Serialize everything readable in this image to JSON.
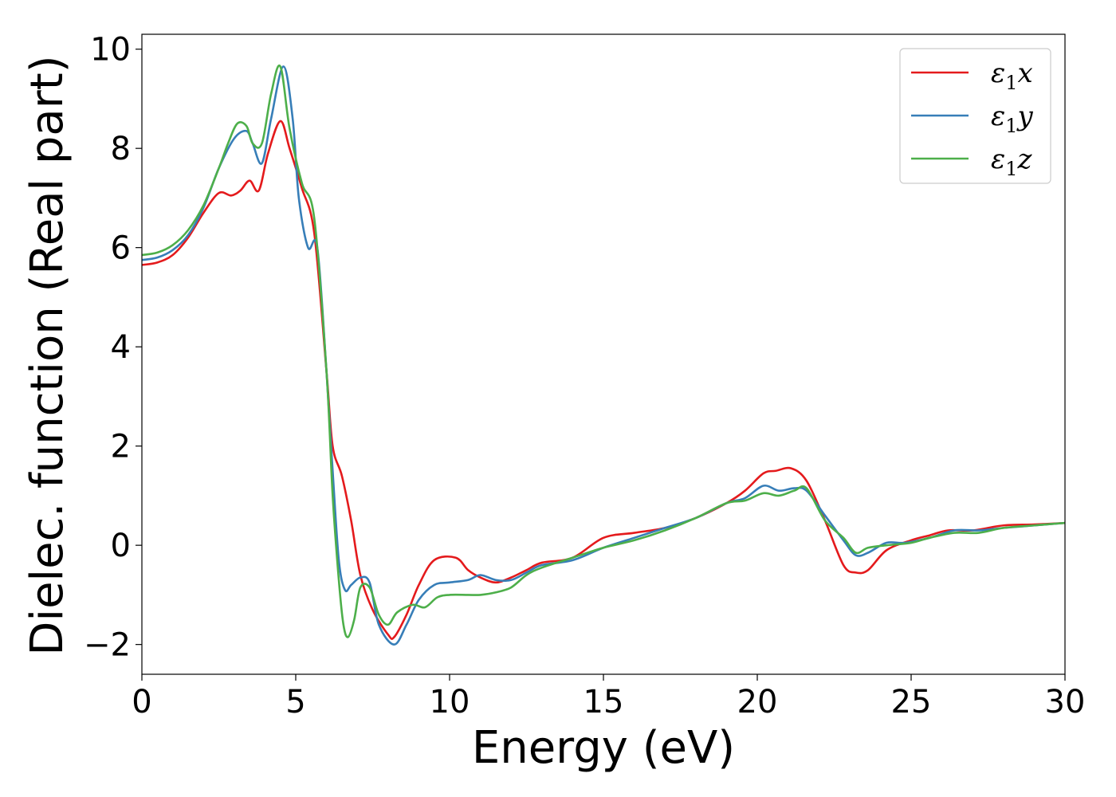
{
  "chart_data": {
    "type": "line",
    "title": "",
    "xlabel": "Energy (eV)",
    "ylabel": "Dielec. function (Real part)",
    "xlim": [
      0,
      30
    ],
    "ylim": [
      -2.6,
      10.3
    ],
    "xticks": [
      0,
      5,
      10,
      15,
      20,
      25,
      30
    ],
    "xtick_labels": [
      "0",
      "5",
      "10",
      "15",
      "20",
      "25",
      "30"
    ],
    "yticks": [
      -2,
      0,
      2,
      4,
      6,
      8,
      10
    ],
    "ytick_labels": [
      "−2",
      "0",
      "2",
      "4",
      "6",
      "8",
      "10"
    ],
    "grid": false,
    "legend_position": "top-right",
    "series": [
      {
        "name": "ε1x",
        "legend_symbol": "ε",
        "legend_sub": "1",
        "legend_var": "x",
        "color": "#e41a1c",
        "x": [
          0,
          0.5,
          1.0,
          1.5,
          2.0,
          2.5,
          2.9,
          3.2,
          3.5,
          3.8,
          4.1,
          4.5,
          4.8,
          5.2,
          5.6,
          6.0,
          6.2,
          6.5,
          6.8,
          7.1,
          7.5,
          8.0,
          8.2,
          8.6,
          9.0,
          9.5,
          10.2,
          10.6,
          11.0,
          11.5,
          12.0,
          12.5,
          13.0,
          14.0,
          15.0,
          16.0,
          17.0,
          18.0,
          19.0,
          19.6,
          20.2,
          20.6,
          21.1,
          21.6,
          22.2,
          22.8,
          23.2,
          23.6,
          24.2,
          25.0,
          25.6,
          26.2,
          27.0,
          28.0,
          29.0,
          30.0
        ],
        "y": [
          5.65,
          5.7,
          5.85,
          6.2,
          6.7,
          7.1,
          7.05,
          7.15,
          7.35,
          7.15,
          7.9,
          8.55,
          8.0,
          7.2,
          6.3,
          3.5,
          2.0,
          1.4,
          0.5,
          -0.6,
          -1.3,
          -1.8,
          -1.85,
          -1.4,
          -0.8,
          -0.3,
          -0.25,
          -0.5,
          -0.65,
          -0.75,
          -0.65,
          -0.5,
          -0.35,
          -0.25,
          0.15,
          0.25,
          0.35,
          0.55,
          0.85,
          1.1,
          1.45,
          1.5,
          1.55,
          1.3,
          0.5,
          -0.4,
          -0.55,
          -0.5,
          -0.1,
          0.1,
          0.2,
          0.3,
          0.3,
          0.4,
          0.42,
          0.45
        ]
      },
      {
        "name": "ε1y",
        "legend_symbol": "ε",
        "legend_sub": "1",
        "legend_var": "y",
        "color": "#377eb8",
        "x": [
          0,
          0.5,
          1.0,
          1.5,
          2.0,
          2.5,
          3.0,
          3.4,
          3.6,
          3.9,
          4.2,
          4.6,
          4.9,
          5.1,
          5.4,
          5.7,
          6.0,
          6.2,
          6.4,
          6.6,
          6.8,
          7.1,
          7.4,
          7.7,
          8.2,
          8.6,
          9.0,
          9.5,
          10.0,
          10.6,
          11.0,
          11.5,
          12.0,
          12.5,
          13.0,
          14.0,
          15.0,
          16.0,
          17.0,
          18.0,
          19.0,
          19.6,
          20.2,
          20.7,
          21.2,
          21.6,
          22.2,
          22.8,
          23.2,
          23.6,
          24.2,
          24.8,
          25.6,
          26.4,
          27.2,
          28.0,
          29.0,
          30.0
        ],
        "y": [
          5.75,
          5.8,
          5.95,
          6.25,
          6.8,
          7.6,
          8.2,
          8.35,
          8.1,
          7.7,
          8.6,
          9.65,
          8.6,
          7.0,
          6.0,
          6.0,
          3.5,
          1.5,
          -0.3,
          -0.9,
          -0.8,
          -0.65,
          -0.75,
          -1.6,
          -2.0,
          -1.6,
          -1.1,
          -0.8,
          -0.75,
          -0.7,
          -0.6,
          -0.7,
          -0.7,
          -0.55,
          -0.4,
          -0.3,
          -0.05,
          0.15,
          0.35,
          0.55,
          0.85,
          0.95,
          1.2,
          1.1,
          1.15,
          1.1,
          0.6,
          0.1,
          -0.2,
          -0.15,
          0.05,
          0.05,
          0.15,
          0.3,
          0.3,
          0.35,
          0.4,
          0.45
        ]
      },
      {
        "name": "ε1z",
        "legend_symbol": "ε",
        "legend_sub": "1",
        "legend_var": "z",
        "color": "#4daf4a",
        "x": [
          0,
          0.5,
          1.0,
          1.5,
          2.0,
          2.5,
          2.8,
          3.1,
          3.4,
          3.6,
          3.9,
          4.2,
          4.5,
          4.8,
          5.2,
          5.6,
          6.0,
          6.2,
          6.4,
          6.55,
          6.7,
          6.9,
          7.1,
          7.4,
          7.7,
          8.0,
          8.3,
          8.8,
          9.2,
          9.6,
          10.0,
          10.6,
          11.0,
          11.5,
          12.0,
          12.5,
          13.0,
          14.0,
          15.0,
          16.0,
          17.0,
          18.0,
          19.0,
          19.6,
          20.2,
          20.7,
          21.2,
          21.6,
          22.2,
          22.8,
          23.2,
          23.6,
          24.2,
          25.0,
          25.6,
          26.4,
          27.2,
          28.0,
          29.0,
          30.0
        ],
        "y": [
          5.85,
          5.9,
          6.05,
          6.35,
          6.85,
          7.6,
          8.1,
          8.5,
          8.45,
          8.1,
          8.1,
          9.1,
          9.65,
          8.4,
          7.3,
          6.6,
          3.5,
          1.0,
          -0.7,
          -1.6,
          -1.85,
          -1.5,
          -0.85,
          -0.85,
          -1.4,
          -1.6,
          -1.35,
          -1.2,
          -1.25,
          -1.05,
          -1.0,
          -1.0,
          -1.0,
          -0.95,
          -0.85,
          -0.6,
          -0.45,
          -0.25,
          -0.05,
          0.1,
          0.3,
          0.55,
          0.85,
          0.9,
          1.05,
          1.0,
          1.1,
          1.15,
          0.5,
          0.15,
          -0.15,
          -0.05,
          0.0,
          0.05,
          0.15,
          0.25,
          0.25,
          0.35,
          0.4,
          0.45
        ]
      }
    ]
  }
}
